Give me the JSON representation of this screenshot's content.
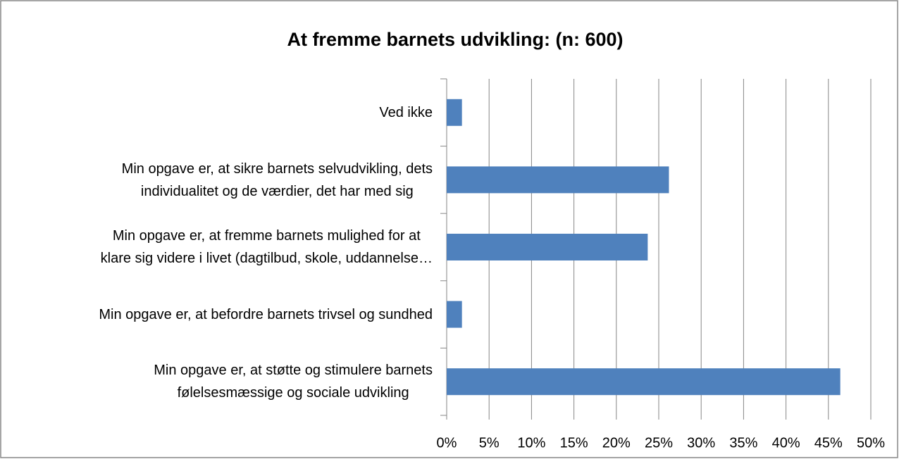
{
  "chart_data": {
    "type": "bar",
    "orientation": "horizontal",
    "title": "At fremme barnets udvikling: (n: 600)",
    "categories": [
      "Ved ikke",
      "Min opgave er, at sikre barnets selvudvikling, dets\nindividualitet og de værdier, det har med sig",
      "Min opgave er, at fremme barnets mulighed for at\nklare sig videre i livet (dagtilbud, skole, uddannelse…",
      "Min opgave er, at befordre barnets trivsel og sundhed",
      "Min opgave er, at støtte og stimulere barnets\nfølelsesmæssige og sociale udvikling"
    ],
    "values": [
      1.8,
      26.2,
      23.7,
      1.8,
      46.4
    ],
    "color": "#4f81bd",
    "xlim": [
      0,
      50
    ],
    "xticks": [
      {
        "value": 0,
        "label": "0%"
      },
      {
        "value": 5,
        "label": "5%"
      },
      {
        "value": 10,
        "label": "10%"
      },
      {
        "value": 15,
        "label": "15%"
      },
      {
        "value": 20,
        "label": "20%"
      },
      {
        "value": 25,
        "label": "25%"
      },
      {
        "value": 30,
        "label": "30%"
      },
      {
        "value": 35,
        "label": "35%"
      },
      {
        "value": 40,
        "label": "40%"
      },
      {
        "value": 45,
        "label": "45%"
      },
      {
        "value": 50,
        "label": "50%"
      }
    ],
    "grid": true
  }
}
